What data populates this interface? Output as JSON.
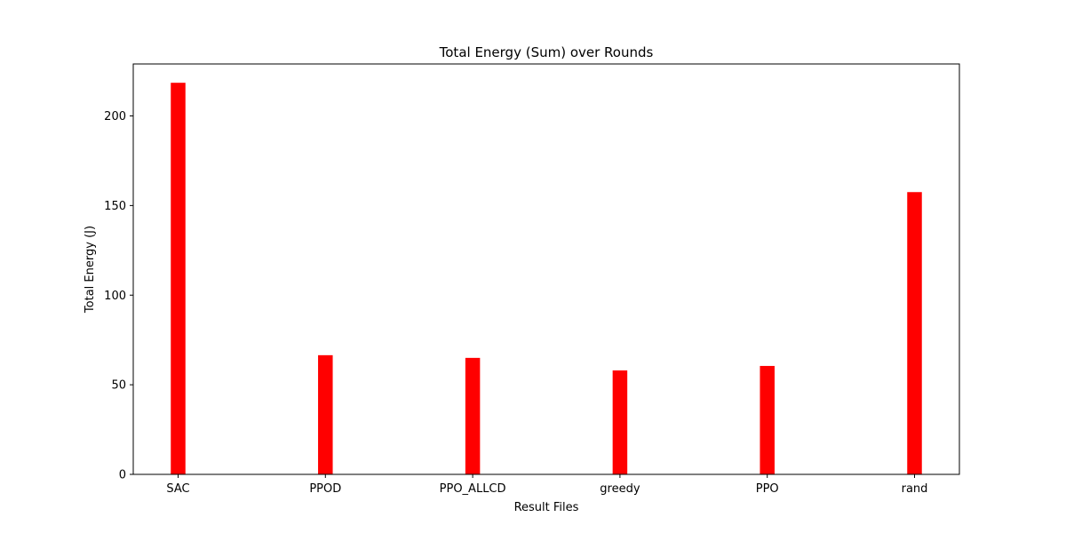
{
  "chart_data": {
    "type": "bar",
    "title": "Total Energy (Sum) over Rounds",
    "xlabel": "Result Files",
    "ylabel": "Total Energy (J)",
    "categories": [
      "SAC",
      "PPOD",
      "PPO_ALLCD",
      "greedy",
      "PPO",
      "rand"
    ],
    "values": [
      218.5,
      66.5,
      65,
      58,
      60.5,
      157.5
    ],
    "ylim": [
      0,
      229
    ],
    "yticks": [
      0,
      50,
      100,
      150,
      200
    ],
    "bar_color": "#ff0000",
    "grid": false,
    "legend": "none"
  }
}
